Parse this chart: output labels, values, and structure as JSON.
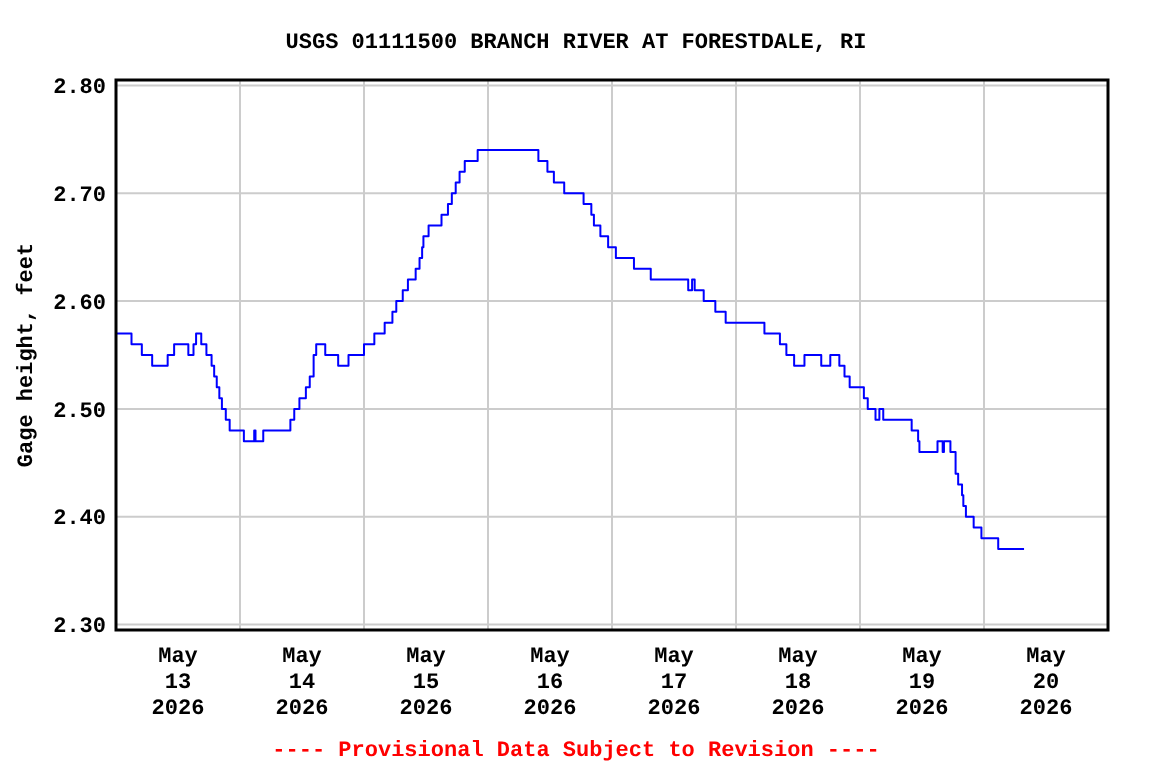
{
  "chart_data": {
    "type": "step",
    "title": "USGS 01111500 BRANCH RIVER AT FORESTDALE, RI",
    "ylabel": "Gage height, feet",
    "annotations": [
      "---- Provisional Data Subject to Revision ----"
    ],
    "xlim": [
      "2026-05-13T00:00",
      "2026-05-21T00:00"
    ],
    "xticks": [
      {
        "value": "2026-05-13T00:00",
        "label": null
      },
      {
        "value": "2026-05-13T12:00",
        "label": "May\n13\n2026"
      },
      {
        "value": "2026-05-14T00:00",
        "label": null
      },
      {
        "value": "2026-05-14T12:00",
        "label": "May\n14\n2026"
      },
      {
        "value": "2026-05-15T00:00",
        "label": null
      },
      {
        "value": "2026-05-15T12:00",
        "label": "May\n15\n2026"
      },
      {
        "value": "2026-05-16T00:00",
        "label": null
      },
      {
        "value": "2026-05-16T12:00",
        "label": "May\n16\n2026"
      },
      {
        "value": "2026-05-17T00:00",
        "label": null
      },
      {
        "value": "2026-05-17T12:00",
        "label": "May\n17\n2026"
      },
      {
        "value": "2026-05-18T00:00",
        "label": null
      },
      {
        "value": "2026-05-18T12:00",
        "label": "May\n18\n2026"
      },
      {
        "value": "2026-05-19T00:00",
        "label": null
      },
      {
        "value": "2026-05-19T12:00",
        "label": "May\n19\n2026"
      },
      {
        "value": "2026-05-20T00:00",
        "label": null
      },
      {
        "value": "2026-05-20T12:00",
        "label": "May\n20\n2026"
      },
      {
        "value": "2026-05-21T00:00",
        "label": null
      }
    ],
    "ylim": [
      2.295,
      2.805
    ],
    "yticks": [
      {
        "value": 2.3,
        "label": "2.30"
      },
      {
        "value": 2.4,
        "label": "2.40"
      },
      {
        "value": 2.5,
        "label": "2.50"
      },
      {
        "value": 2.6,
        "label": "2.60"
      },
      {
        "value": 2.7,
        "label": "2.70"
      },
      {
        "value": 2.8,
        "label": "2.80"
      }
    ],
    "grid": true,
    "series": [
      {
        "color": "#0000ff",
        "x": [
          "2026-05-13T00:00",
          "2026-05-13T03:00",
          "2026-05-13T05:00",
          "2026-05-13T07:00",
          "2026-05-13T10:00",
          "2026-05-13T11:15",
          "2026-05-13T14:00",
          "2026-05-13T15:00",
          "2026-05-13T15:30",
          "2026-05-13T16:30",
          "2026-05-13T17:30",
          "2026-05-13T18:30",
          "2026-05-13T19:00",
          "2026-05-13T19:30",
          "2026-05-13T20:00",
          "2026-05-13T20:30",
          "2026-05-13T21:15",
          "2026-05-13T22:00",
          "2026-05-14T00:45",
          "2026-05-14T02:45",
          "2026-05-14T03:00",
          "2026-05-14T04:30",
          "2026-05-14T09:45",
          "2026-05-14T10:30",
          "2026-05-14T11:30",
          "2026-05-14T12:45",
          "2026-05-14T13:30",
          "2026-05-14T14:15",
          "2026-05-14T14:45",
          "2026-05-14T16:30",
          "2026-05-14T19:00",
          "2026-05-14T21:00",
          "2026-05-15T00:00",
          "2026-05-15T02:00",
          "2026-05-15T04:00",
          "2026-05-15T05:30",
          "2026-05-15T06:15",
          "2026-05-15T07:30",
          "2026-05-15T08:30",
          "2026-05-15T10:00",
          "2026-05-15T10:45",
          "2026-05-15T11:15",
          "2026-05-15T11:30",
          "2026-05-15T12:30",
          "2026-05-15T15:00",
          "2026-05-15T16:15",
          "2026-05-15T17:00",
          "2026-05-15T17:45",
          "2026-05-15T18:30",
          "2026-05-15T19:30",
          "2026-05-15T22:00",
          "2026-05-16T09:45",
          "2026-05-16T11:30",
          "2026-05-16T12:45",
          "2026-05-16T14:45",
          "2026-05-16T18:30",
          "2026-05-16T20:00",
          "2026-05-16T20:30",
          "2026-05-16T21:45",
          "2026-05-16T23:15",
          "2026-05-17T00:45",
          "2026-05-17T04:15",
          "2026-05-17T07:30",
          "2026-05-17T14:45",
          "2026-05-17T15:30",
          "2026-05-17T16:00",
          "2026-05-17T17:45",
          "2026-05-17T20:00",
          "2026-05-17T22:00",
          "2026-05-18T05:30",
          "2026-05-18T08:30",
          "2026-05-18T09:45",
          "2026-05-18T11:15",
          "2026-05-18T13:15",
          "2026-05-18T16:30",
          "2026-05-18T18:15",
          "2026-05-18T20:00",
          "2026-05-18T21:00",
          "2026-05-18T22:00",
          "2026-05-19T00:45",
          "2026-05-19T01:30",
          "2026-05-19T03:00",
          "2026-05-19T03:45",
          "2026-05-19T04:30",
          "2026-05-19T10:00",
          "2026-05-19T11:15",
          "2026-05-19T11:30",
          "2026-05-19T15:00",
          "2026-05-19T16:00",
          "2026-05-19T16:15",
          "2026-05-19T17:30",
          "2026-05-19T18:30",
          "2026-05-19T19:00",
          "2026-05-19T19:45",
          "2026-05-19T20:00",
          "2026-05-19T20:30",
          "2026-05-19T22:00",
          "2026-05-19T23:30",
          "2026-05-20T02:45",
          "2026-05-20T07:45"
        ],
        "values": [
          2.57,
          2.56,
          2.55,
          2.54,
          2.55,
          2.56,
          2.55,
          2.56,
          2.57,
          2.56,
          2.55,
          2.54,
          2.53,
          2.52,
          2.51,
          2.5,
          2.49,
          2.48,
          2.47,
          2.48,
          2.47,
          2.48,
          2.49,
          2.5,
          2.51,
          2.52,
          2.53,
          2.55,
          2.56,
          2.55,
          2.54,
          2.55,
          2.56,
          2.57,
          2.58,
          2.59,
          2.6,
          2.61,
          2.62,
          2.63,
          2.64,
          2.65,
          2.66,
          2.67,
          2.68,
          2.69,
          2.7,
          2.71,
          2.72,
          2.73,
          2.74,
          2.73,
          2.72,
          2.71,
          2.7,
          2.69,
          2.68,
          2.67,
          2.66,
          2.65,
          2.64,
          2.63,
          2.62,
          2.61,
          2.62,
          2.61,
          2.6,
          2.59,
          2.58,
          2.57,
          2.56,
          2.55,
          2.54,
          2.55,
          2.54,
          2.55,
          2.54,
          2.53,
          2.52,
          2.51,
          2.5,
          2.49,
          2.5,
          2.49,
          2.48,
          2.47,
          2.46,
          2.47,
          2.46,
          2.47,
          2.46,
          2.44,
          2.43,
          2.42,
          2.41,
          2.4,
          2.39,
          2.38,
          2.37,
          2.37
        ]
      }
    ]
  }
}
